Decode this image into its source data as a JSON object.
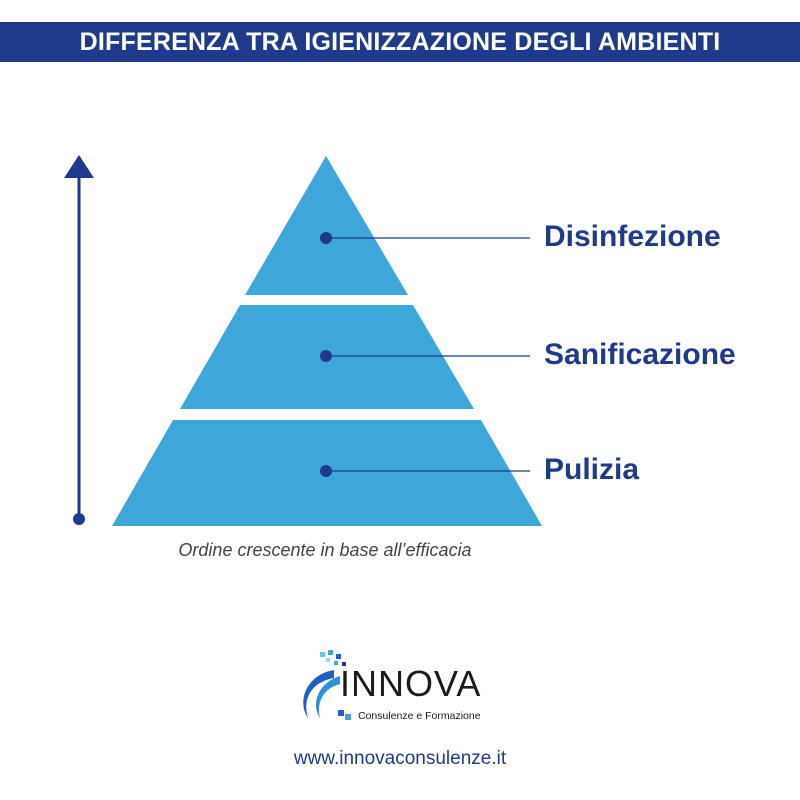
{
  "header": {
    "title": "DIFFERENZA TRA IGIENIZZAZIONE DEGLI AMBIENTI"
  },
  "pyramid": {
    "levels": [
      {
        "label": "Disinfezione",
        "rank": 3
      },
      {
        "label": "Sanificazione",
        "rank": 2
      },
      {
        "label": "Pulizia",
        "rank": 1
      }
    ],
    "caption": "Ordine crescente in base all’efficacia"
  },
  "branding": {
    "logo_name": "INNOVA",
    "logo_tagline": "Consulenze e Formazione",
    "website": "www.innovaconsulenze.it"
  },
  "colors": {
    "header_bg": "#1f3a8a",
    "pyramid_fill": "#3fa6da",
    "accent": "#1f3a8a"
  }
}
